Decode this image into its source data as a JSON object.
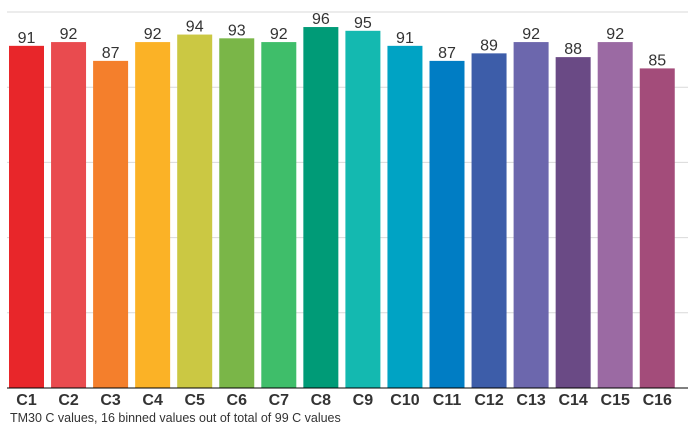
{
  "chart_data": {
    "type": "bar",
    "categories": [
      "C1",
      "C2",
      "C3",
      "C4",
      "C5",
      "C6",
      "C7",
      "C8",
      "C9",
      "C10",
      "C11",
      "C12",
      "C13",
      "C14",
      "C15",
      "C16"
    ],
    "values": [
      91,
      92,
      87,
      92,
      94,
      93,
      92,
      96,
      95,
      91,
      87,
      89,
      92,
      88,
      92,
      85
    ],
    "colors": [
      "#e8262a",
      "#e94b4f",
      "#f47f2c",
      "#fbb226",
      "#cbc843",
      "#7ab648",
      "#3fbe6a",
      "#009b77",
      "#14b9b0",
      "#00a3c4",
      "#007dc4",
      "#3d5da9",
      "#6c67ad",
      "#6a4a85",
      "#9b6aa3",
      "#a34c7a"
    ],
    "ylim": [
      0,
      100
    ],
    "yticks": [
      0,
      20,
      40,
      60,
      80,
      100
    ],
    "grid": true,
    "caption": "TM30 C values, 16 binned values out of total of 99 C values"
  }
}
